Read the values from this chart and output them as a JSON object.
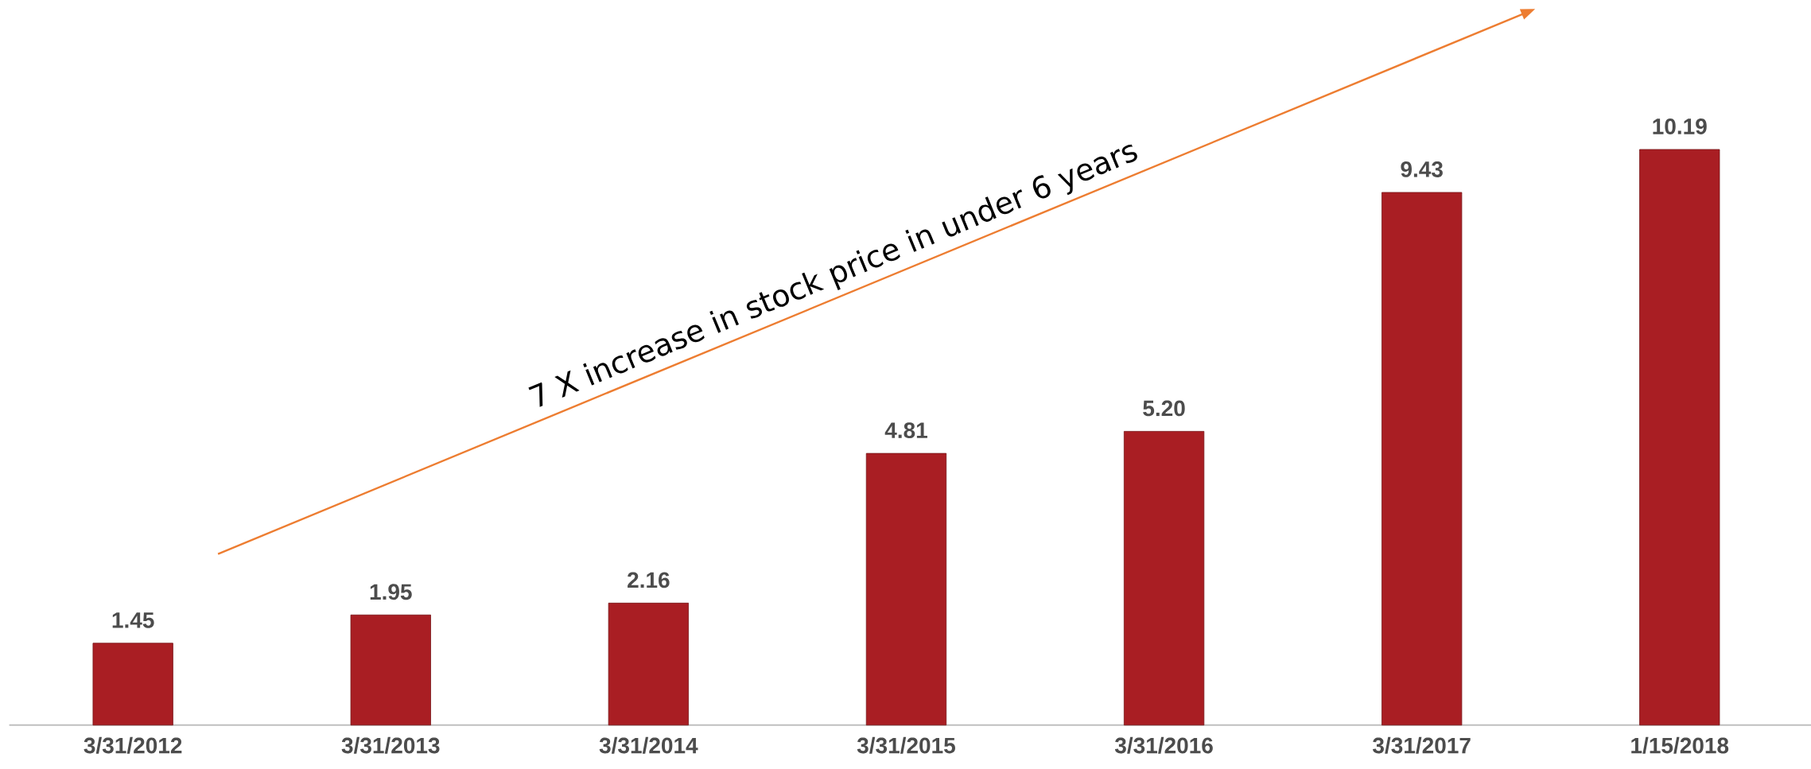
{
  "chart_data": {
    "type": "bar",
    "categories": [
      "3/31/2012",
      "3/31/2013",
      "3/31/2014",
      "3/31/2015",
      "3/31/2016",
      "3/31/2017",
      "1/15/2018"
    ],
    "values": [
      1.45,
      1.95,
      2.16,
      4.81,
      5.2,
      9.43,
      10.19
    ],
    "value_labels": [
      "1.45",
      "1.95",
      "2.16",
      "4.81",
      "5.20",
      "9.43",
      "10.19"
    ],
    "color": "#a91e23",
    "annotations": [
      "7 X increase in stock price in under 6 years"
    ]
  }
}
